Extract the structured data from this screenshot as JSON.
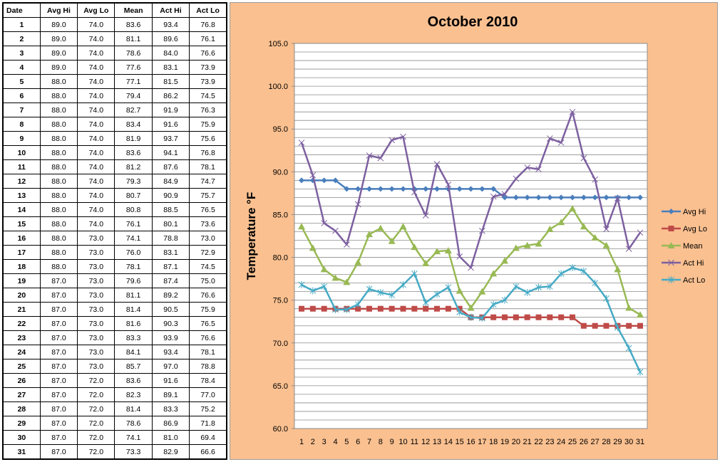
{
  "table": {
    "headers": [
      "Date",
      "Avg Hi",
      "Avg Lo",
      "Mean",
      "Act Hi",
      "Act Lo"
    ],
    "rows": [
      [
        "1",
        "89.0",
        "74.0",
        "83.6",
        "93.4",
        "76.8"
      ],
      [
        "2",
        "89.0",
        "74.0",
        "81.1",
        "89.6",
        "76.1"
      ],
      [
        "3",
        "89.0",
        "74.0",
        "78.6",
        "84.0",
        "76.6"
      ],
      [
        "4",
        "89.0",
        "74.0",
        "77.6",
        "83.1",
        "73.9"
      ],
      [
        "5",
        "88.0",
        "74.0",
        "77.1",
        "81.5",
        "73.9"
      ],
      [
        "6",
        "88.0",
        "74.0",
        "79.4",
        "86.2",
        "74.5"
      ],
      [
        "7",
        "88.0",
        "74.0",
        "82.7",
        "91.9",
        "76.3"
      ],
      [
        "8",
        "88.0",
        "74.0",
        "83.4",
        "91.6",
        "75.9"
      ],
      [
        "9",
        "88.0",
        "74.0",
        "81.9",
        "93.7",
        "75.6"
      ],
      [
        "10",
        "88.0",
        "74.0",
        "83.6",
        "94.1",
        "76.8"
      ],
      [
        "11",
        "88.0",
        "74.0",
        "81.2",
        "87.6",
        "78.1"
      ],
      [
        "12",
        "88.0",
        "74.0",
        "79.3",
        "84.9",
        "74.7"
      ],
      [
        "13",
        "88.0",
        "74.0",
        "80.7",
        "90.9",
        "75.7"
      ],
      [
        "14",
        "88.0",
        "74.0",
        "80.8",
        "88.5",
        "76.5"
      ],
      [
        "15",
        "88.0",
        "74.0",
        "76.1",
        "80.1",
        "73.6"
      ],
      [
        "16",
        "88.0",
        "73.0",
        "74.1",
        "78.8",
        "73.0"
      ],
      [
        "17",
        "88.0",
        "73.0",
        "76.0",
        "83.1",
        "72.9"
      ],
      [
        "18",
        "88.0",
        "73.0",
        "78.1",
        "87.1",
        "74.5"
      ],
      [
        "19",
        "87.0",
        "73.0",
        "79.6",
        "87.4",
        "75.0"
      ],
      [
        "20",
        "87.0",
        "73.0",
        "81.1",
        "89.2",
        "76.6"
      ],
      [
        "21",
        "87.0",
        "73.0",
        "81.4",
        "90.5",
        "75.9"
      ],
      [
        "22",
        "87.0",
        "73.0",
        "81.6",
        "90.3",
        "76.5"
      ],
      [
        "23",
        "87.0",
        "73.0",
        "83.3",
        "93.9",
        "76.6"
      ],
      [
        "24",
        "87.0",
        "73.0",
        "84.1",
        "93.4",
        "78.1"
      ],
      [
        "25",
        "87.0",
        "73.0",
        "85.7",
        "97.0",
        "78.8"
      ],
      [
        "26",
        "87.0",
        "72.0",
        "83.6",
        "91.6",
        "78.4"
      ],
      [
        "27",
        "87.0",
        "72.0",
        "82.3",
        "89.1",
        "77.0"
      ],
      [
        "28",
        "87.0",
        "72.0",
        "81.4",
        "83.3",
        "75.2"
      ],
      [
        "29",
        "87.0",
        "72.0",
        "78.6",
        "86.9",
        "71.8"
      ],
      [
        "30",
        "87.0",
        "72.0",
        "74.1",
        "81.0",
        "69.4"
      ],
      [
        "31",
        "87.0",
        "72.0",
        "73.3",
        "82.9",
        "66.6"
      ]
    ]
  },
  "chart_data": {
    "type": "line",
    "title": "October 2010",
    "xlabel": "",
    "ylabel": "Temperature °F",
    "x": [
      1,
      2,
      3,
      4,
      5,
      6,
      7,
      8,
      9,
      10,
      11,
      12,
      13,
      14,
      15,
      16,
      17,
      18,
      19,
      20,
      21,
      22,
      23,
      24,
      25,
      26,
      27,
      28,
      29,
      30,
      31
    ],
    "ylim": [
      60,
      105
    ],
    "yticks": [
      "60.0",
      "65.0",
      "70.0",
      "75.0",
      "80.0",
      "85.0",
      "90.0",
      "95.0",
      "100.0",
      "105.0"
    ],
    "grid": true,
    "legend_position": "right",
    "series": [
      {
        "name": "Avg Hi",
        "color": "#4a7ebb",
        "marker": "diamond",
        "values": [
          89,
          89,
          89,
          89,
          88,
          88,
          88,
          88,
          88,
          88,
          88,
          88,
          88,
          88,
          88,
          88,
          88,
          88,
          87,
          87,
          87,
          87,
          87,
          87,
          87,
          87,
          87,
          87,
          87,
          87,
          87
        ]
      },
      {
        "name": "Avg Lo",
        "color": "#be4b48",
        "marker": "square",
        "values": [
          74,
          74,
          74,
          74,
          74,
          74,
          74,
          74,
          74,
          74,
          74,
          74,
          74,
          74,
          74,
          73,
          73,
          73,
          73,
          73,
          73,
          73,
          73,
          73,
          73,
          72,
          72,
          72,
          72,
          72,
          72
        ]
      },
      {
        "name": "Mean",
        "color": "#98b954",
        "marker": "triangle",
        "values": [
          83.6,
          81.1,
          78.6,
          77.6,
          77.1,
          79.4,
          82.7,
          83.4,
          81.9,
          83.6,
          81.2,
          79.3,
          80.7,
          80.8,
          76.1,
          74.1,
          76.0,
          78.1,
          79.6,
          81.1,
          81.4,
          81.6,
          83.3,
          84.1,
          85.7,
          83.6,
          82.3,
          81.4,
          78.6,
          74.1,
          73.3
        ]
      },
      {
        "name": "Act Hi",
        "color": "#7d60a0",
        "marker": "x",
        "values": [
          93.4,
          89.6,
          84.0,
          83.1,
          81.5,
          86.2,
          91.9,
          91.6,
          93.7,
          94.1,
          87.6,
          84.9,
          90.9,
          88.5,
          80.1,
          78.8,
          83.1,
          87.1,
          87.4,
          89.2,
          90.5,
          90.3,
          93.9,
          93.4,
          97.0,
          91.6,
          89.1,
          83.3,
          86.9,
          81.0,
          82.9
        ]
      },
      {
        "name": "Act Lo",
        "color": "#46aac5",
        "marker": "star",
        "values": [
          76.8,
          76.1,
          76.6,
          73.9,
          73.9,
          74.5,
          76.3,
          75.9,
          75.6,
          76.8,
          78.1,
          74.7,
          75.7,
          76.5,
          73.6,
          73.0,
          72.9,
          74.5,
          75.0,
          76.6,
          75.9,
          76.5,
          76.6,
          78.1,
          78.8,
          78.4,
          77.0,
          75.2,
          71.8,
          69.4,
          66.6
        ]
      }
    ]
  },
  "colors": {
    "chart_background": "#fac090",
    "plot_background": "#ffffff",
    "gridline": "#8c8c8c"
  }
}
